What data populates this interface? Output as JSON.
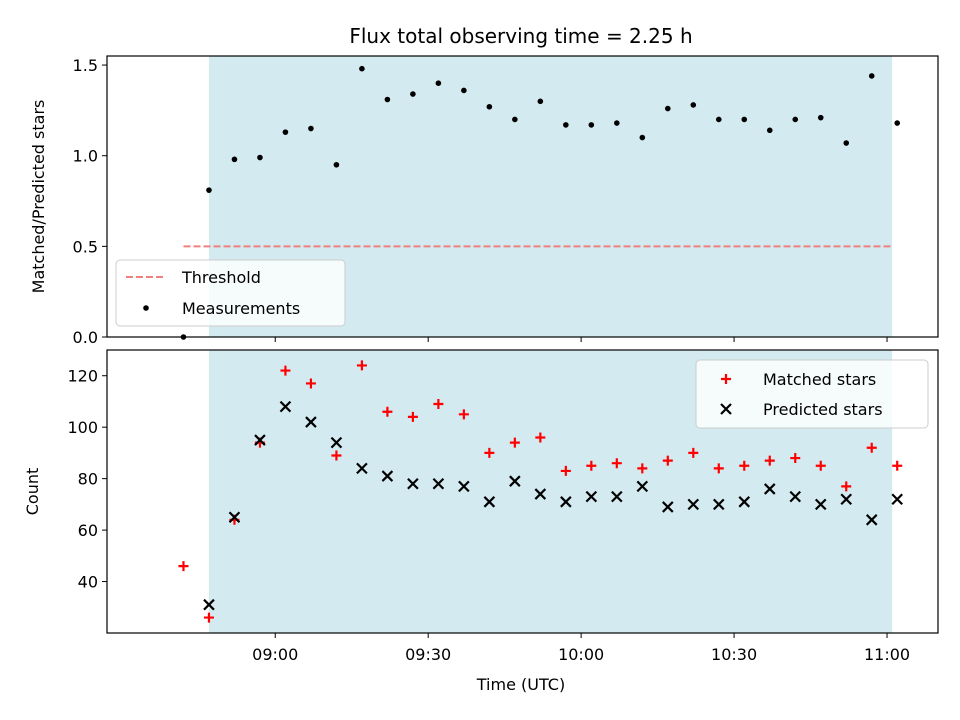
{
  "figure": {
    "title": "Flux total observing time = 2.25 h",
    "xlabel": "Time (UTC)"
  },
  "chart_data": [
    {
      "type": "scatter",
      "ylabel": "Matched/Predicted stars",
      "ylim": [
        0,
        1.55
      ],
      "y_ticks": [
        0,
        0.5,
        1.0,
        1.5
      ],
      "y_tick_labels": [
        "0.0",
        "0.5",
        "1.0",
        "1.5"
      ],
      "x_range": [
        "08:27",
        "11:10"
      ],
      "shaded_span": [
        "08:47",
        "11:01"
      ],
      "threshold": {
        "name": "Threshold",
        "value": 0.5,
        "x": [
          "08:42",
          "11:01"
        ],
        "color": "#f08080"
      },
      "series": [
        {
          "name": "Measurements",
          "color": "#000000",
          "x": [
            "08:42",
            "08:47",
            "08:52",
            "08:57",
            "09:02",
            "09:07",
            "09:12",
            "09:17",
            "09:22",
            "09:27",
            "09:32",
            "09:37",
            "09:42",
            "09:47",
            "09:52",
            "09:57",
            "10:02",
            "10:07",
            "10:12",
            "10:17",
            "10:22",
            "10:27",
            "10:32",
            "10:37",
            "10:42",
            "10:47",
            "10:52",
            "10:57",
            "11:02"
          ],
          "y": [
            0.0,
            0.81,
            0.98,
            0.99,
            1.13,
            1.15,
            0.95,
            1.48,
            1.31,
            1.34,
            1.4,
            1.36,
            1.27,
            1.2,
            1.3,
            1.17,
            1.17,
            1.18,
            1.1,
            1.26,
            1.28,
            1.2,
            1.2,
            1.14,
            1.2,
            1.21,
            1.07,
            1.44,
            1.18
          ]
        }
      ],
      "legend": {
        "position": "lower-left",
        "entries": [
          "Threshold",
          "Measurements"
        ]
      }
    },
    {
      "type": "scatter",
      "ylabel": "Count",
      "ylim": [
        20,
        130
      ],
      "y_ticks": [
        40,
        60,
        80,
        100,
        120
      ],
      "y_tick_labels": [
        "40",
        "60",
        "80",
        "100",
        "120"
      ],
      "x_range": [
        "08:27",
        "11:10"
      ],
      "x_ticks": [
        "09:00",
        "09:30",
        "10:00",
        "10:30",
        "11:00"
      ],
      "shaded_span": [
        "08:47",
        "11:01"
      ],
      "series": [
        {
          "name": "Matched stars",
          "marker": "plus",
          "color": "#ff0000",
          "x": [
            "08:42",
            "08:47",
            "08:52",
            "08:57",
            "09:02",
            "09:07",
            "09:12",
            "09:17",
            "09:22",
            "09:27",
            "09:32",
            "09:37",
            "09:42",
            "09:47",
            "09:52",
            "09:57",
            "10:02",
            "10:07",
            "10:12",
            "10:17",
            "10:22",
            "10:27",
            "10:32",
            "10:37",
            "10:42",
            "10:47",
            "10:52",
            "10:57",
            "11:02"
          ],
          "y": [
            46,
            26,
            64,
            94,
            122,
            117,
            89,
            124,
            106,
            104,
            109,
            105,
            90,
            94,
            96,
            83,
            85,
            86,
            84,
            87,
            90,
            84,
            85,
            87,
            88,
            85,
            77,
            92,
            85
          ]
        },
        {
          "name": "Predicted stars",
          "marker": "x",
          "color": "#000000",
          "x": [
            "08:47",
            "08:52",
            "08:57",
            "09:02",
            "09:07",
            "09:12",
            "09:17",
            "09:22",
            "09:27",
            "09:32",
            "09:37",
            "09:42",
            "09:47",
            "09:52",
            "09:57",
            "10:02",
            "10:07",
            "10:12",
            "10:17",
            "10:22",
            "10:27",
            "10:32",
            "10:37",
            "10:42",
            "10:47",
            "10:52",
            "10:57",
            "11:02"
          ],
          "y": [
            31,
            65,
            95,
            108,
            102,
            94,
            84,
            81,
            78,
            78,
            77,
            71,
            79,
            74,
            71,
            73,
            73,
            77,
            69,
            70,
            70,
            71,
            76,
            73,
            70,
            72,
            64,
            72
          ]
        }
      ],
      "legend": {
        "position": "upper-right",
        "entries": [
          "Matched stars",
          "Predicted stars"
        ]
      }
    }
  ],
  "colors": {
    "shade": "#d3eaf0",
    "axis": "#000000",
    "background": "#ffffff"
  }
}
